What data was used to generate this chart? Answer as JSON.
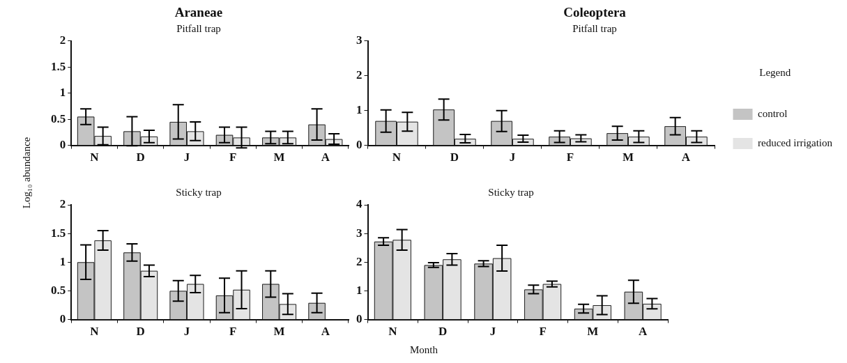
{
  "chart_data": [
    {
      "type": "bar",
      "title": "Araneae",
      "subtitle": "Pitfall trap",
      "ylabel": "Log₁₀ abundance",
      "categories": [
        "N",
        "D",
        "J",
        "F",
        "M",
        "A"
      ],
      "ylim": [
        0,
        2
      ],
      "yticks": [
        0,
        0.5,
        1,
        1.5,
        2
      ],
      "grid": false,
      "series": [
        {
          "color": "#c4c4c4",
          "values": [
            0.55,
            0.27,
            0.45,
            0.2,
            0.15,
            0.4
          ],
          "errors": [
            0.15,
            0.28,
            0.33,
            0.15,
            0.12,
            0.3
          ]
        },
        {
          "color": "#e4e4e4",
          "values": [
            0.18,
            0.17,
            0.27,
            0.15,
            0.15,
            0.12
          ],
          "errors": [
            0.17,
            0.12,
            0.18,
            0.2,
            0.12,
            0.1
          ]
        }
      ]
    },
    {
      "type": "bar",
      "title": "Coleoptera",
      "subtitle": "Pitfall trap",
      "legend": "right",
      "legend_title": "Legend",
      "categories": [
        "N",
        "D",
        "J",
        "F",
        "M",
        "A"
      ],
      "ylim": [
        0,
        3
      ],
      "yticks": [
        0,
        1,
        2,
        3
      ],
      "grid": false,
      "series": [
        {
          "name": "control",
          "color": "#c4c4c4",
          "values": [
            0.7,
            1.03,
            0.7,
            0.25,
            0.35,
            0.55
          ],
          "errors": [
            0.32,
            0.3,
            0.3,
            0.17,
            0.2,
            0.25
          ]
        },
        {
          "name": "reduced irrigation",
          "color": "#e4e4e4",
          "values": [
            0.68,
            0.19,
            0.19,
            0.2,
            0.25,
            0.25
          ],
          "errors": [
            0.27,
            0.12,
            0.1,
            0.1,
            0.17,
            0.17
          ]
        }
      ]
    },
    {
      "type": "bar",
      "subtitle": "Sticky trap",
      "categories": [
        "N",
        "D",
        "J",
        "F",
        "M",
        "A"
      ],
      "ylim": [
        0,
        2
      ],
      "yticks": [
        0,
        0.5,
        1,
        1.5,
        2
      ],
      "grid": false,
      "series": [
        {
          "color": "#c4c4c4",
          "values": [
            1.0,
            1.17,
            0.5,
            0.42,
            0.62,
            0.29
          ],
          "errors": [
            0.3,
            0.15,
            0.18,
            0.3,
            0.23,
            0.17
          ]
        },
        {
          "color": "#e4e4e4",
          "values": [
            1.38,
            0.85,
            0.62,
            0.52,
            0.27,
            null
          ],
          "errors": [
            0.17,
            0.1,
            0.15,
            0.33,
            0.18,
            null
          ]
        }
      ]
    },
    {
      "type": "bar",
      "subtitle": "Sticky trap",
      "xlabel": "Month",
      "categories": [
        "N",
        "D",
        "J",
        "F",
        "M",
        "A"
      ],
      "ylim": [
        0,
        4
      ],
      "yticks": [
        0,
        1,
        2,
        3,
        4
      ],
      "grid": false,
      "series": [
        {
          "color": "#c4c4c4",
          "values": [
            2.72,
            1.9,
            1.95,
            1.05,
            0.38,
            0.97
          ],
          "errors": [
            0.13,
            0.08,
            0.1,
            0.15,
            0.15,
            0.4
          ]
        },
        {
          "color": "#e4e4e4",
          "values": [
            2.78,
            2.1,
            2.14,
            1.24,
            0.5,
            0.55
          ],
          "errors": [
            0.36,
            0.2,
            0.45,
            0.1,
            0.33,
            0.18
          ]
        }
      ]
    }
  ]
}
